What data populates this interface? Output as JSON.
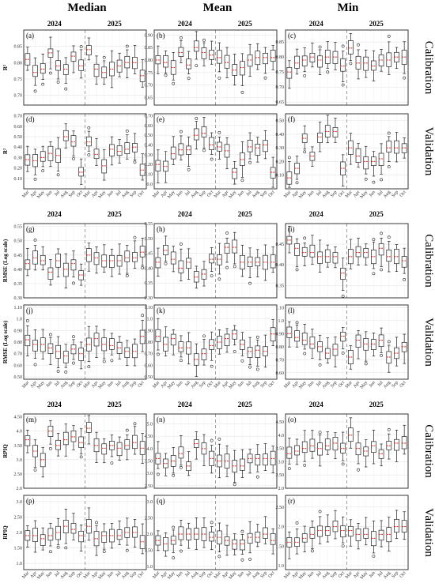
{
  "figure": {
    "columns": [
      "Median",
      "Mean",
      "Min"
    ],
    "years": [
      "2024",
      "2025"
    ],
    "row_labels": [
      "Calibration",
      "Validation",
      "Calibration",
      "Validation",
      "Calibration",
      "Validation"
    ],
    "months": [
      "Mar",
      "Apr",
      "May",
      "Jun",
      "Jul",
      "Aug",
      "Sep",
      "Oct",
      "Mar",
      "Apr",
      "May",
      "Jun",
      "Jul",
      "Aug",
      "Sep",
      "Oct"
    ],
    "ylabels": {
      "r2": "R²",
      "rmse": "RMSE (Log scale)",
      "rpiq": "RPIQ"
    },
    "colors": {
      "box": "#222222",
      "median": "#e8392f",
      "divider": "#888888",
      "grid": "#e5e5e5"
    }
  },
  "chart_data": [
    {
      "type": "box",
      "panel": "(a)",
      "metric": "R²",
      "column": "Median",
      "set": "Calibration",
      "ylim": [
        0.67,
        0.9
      ],
      "yticks": [
        0.7,
        0.75,
        0.8,
        0.85
      ],
      "medians": [
        0.81,
        0.77,
        0.78,
        0.83,
        0.79,
        0.78,
        0.82,
        0.79,
        0.84,
        0.78,
        0.77,
        0.78,
        0.79,
        0.8,
        0.8,
        0.76
      ]
    },
    {
      "type": "box",
      "panel": "(b)",
      "metric": "R²",
      "column": "Mean",
      "set": "Calibration",
      "ylim": [
        0.62,
        0.92
      ],
      "yticks": [
        0.65,
        0.7,
        0.75,
        0.8,
        0.85,
        0.9
      ],
      "medians": [
        0.8,
        0.79,
        0.77,
        0.83,
        0.78,
        0.85,
        0.83,
        0.82,
        0.81,
        0.79,
        0.76,
        0.77,
        0.8,
        0.81,
        0.81,
        0.81
      ]
    },
    {
      "type": "box",
      "panel": "(c)",
      "metric": "R²",
      "column": "Min",
      "set": "Calibration",
      "ylim": [
        0.64,
        0.89
      ],
      "yticks": [
        0.65,
        0.7,
        0.75,
        0.8,
        0.85
      ],
      "medians": [
        0.75,
        0.78,
        0.79,
        0.8,
        0.79,
        0.8,
        0.8,
        0.77,
        0.83,
        0.78,
        0.78,
        0.77,
        0.79,
        0.79,
        0.8,
        0.8
      ]
    },
    {
      "type": "box",
      "panel": "(d)",
      "metric": "R²",
      "column": "Median",
      "set": "Validation",
      "ylim": [
        0.0,
        0.72
      ],
      "yticks": [
        0.1,
        0.2,
        0.3,
        0.4,
        0.5,
        0.6,
        0.7
      ],
      "medians": [
        0.28,
        0.27,
        0.3,
        0.34,
        0.32,
        0.5,
        0.45,
        0.16,
        0.45,
        0.33,
        0.22,
        0.38,
        0.36,
        0.38,
        0.4,
        0.18
      ]
    },
    {
      "type": "box",
      "panel": "(e)",
      "metric": "R²",
      "column": "Mean",
      "set": "Validation",
      "ylim": [
        -0.05,
        0.72
      ],
      "yticks": [
        0.0,
        0.1,
        0.2,
        0.3,
        0.4,
        0.5,
        0.6,
        0.7
      ],
      "medians": [
        0.2,
        0.18,
        0.31,
        0.35,
        0.35,
        0.5,
        0.52,
        0.4,
        0.38,
        0.34,
        0.12,
        0.25,
        0.38,
        0.37,
        0.4,
        0.12
      ]
    },
    {
      "type": "box",
      "panel": "(f)",
      "metric": "R²",
      "column": "Min",
      "set": "Validation",
      "ylim": [
        0.0,
        0.55
      ],
      "yticks": [
        0.1,
        0.2,
        0.3,
        0.4,
        0.5
      ],
      "medians": [
        0.08,
        0.15,
        0.37,
        0.24,
        0.38,
        0.42,
        0.42,
        0.15,
        0.3,
        0.24,
        0.2,
        0.2,
        0.22,
        0.3,
        0.3,
        0.3
      ]
    },
    {
      "type": "box",
      "panel": "(g)",
      "metric": "RMSE",
      "column": "Median",
      "set": "Calibration",
      "ylim": [
        0.3,
        0.56
      ],
      "yticks": [
        0.3,
        0.35,
        0.4,
        0.45,
        0.5,
        0.55
      ],
      "medians": [
        0.42,
        0.44,
        0.43,
        0.39,
        0.43,
        0.4,
        0.42,
        0.38,
        0.45,
        0.44,
        0.43,
        0.43,
        0.43,
        0.44,
        0.44,
        0.46
      ]
    },
    {
      "type": "box",
      "panel": "(h)",
      "metric": "RMSE",
      "column": "Mean",
      "set": "Calibration",
      "ylim": [
        0.3,
        0.55
      ],
      "yticks": [
        0.3,
        0.35,
        0.4,
        0.45,
        0.5,
        0.55
      ],
      "medians": [
        0.42,
        0.46,
        0.43,
        0.4,
        0.42,
        0.37,
        0.38,
        0.43,
        0.43,
        0.47,
        0.47,
        0.42,
        0.42,
        0.42,
        0.42,
        0.42
      ]
    },
    {
      "type": "box",
      "panel": "(i)",
      "metric": "RMSE",
      "column": "Min",
      "set": "Calibration",
      "ylim": [
        0.32,
        0.5
      ],
      "yticks": [
        0.35,
        0.4,
        0.45
      ],
      "medians": [
        0.46,
        0.44,
        0.43,
        0.43,
        0.42,
        0.42,
        0.42,
        0.38,
        0.42,
        0.43,
        0.43,
        0.42,
        0.44,
        0.42,
        0.42,
        0.41
      ]
    },
    {
      "type": "box",
      "panel": "(j)",
      "metric": "RMSE",
      "column": "Median",
      "set": "Validation",
      "ylim": [
        0.48,
        1.12
      ],
      "yticks": [
        0.5,
        0.6,
        0.7,
        0.8,
        0.9,
        1.0,
        1.1
      ],
      "medians": [
        0.82,
        0.78,
        0.78,
        0.75,
        0.72,
        0.68,
        0.74,
        0.7,
        0.78,
        0.83,
        0.78,
        0.77,
        0.75,
        0.72,
        0.72,
        0.85
      ]
    },
    {
      "type": "box",
      "panel": "(k)",
      "metric": "RMSE",
      "column": "Mean",
      "set": "Validation",
      "ylim": [
        0.48,
        1.12
      ],
      "yticks": [
        0.5,
        0.6,
        0.7,
        0.8,
        0.9,
        1.0,
        1.1
      ],
      "medians": [
        0.85,
        0.78,
        0.83,
        0.75,
        0.75,
        0.65,
        0.7,
        0.77,
        0.8,
        0.83,
        0.87,
        0.78,
        0.72,
        0.73,
        0.72,
        0.87
      ]
    },
    {
      "type": "box",
      "panel": "(l)",
      "metric": "RMSE",
      "column": "Min",
      "set": "Validation",
      "ylim": [
        0.55,
        1.12
      ],
      "yticks": [
        0.6,
        0.7,
        0.8,
        0.9,
        1.0,
        1.1
      ],
      "medians": [
        0.9,
        0.87,
        0.85,
        0.82,
        0.8,
        0.75,
        0.78,
        0.88,
        0.72,
        0.85,
        0.82,
        0.82,
        0.85,
        0.72,
        0.75,
        0.8
      ]
    },
    {
      "type": "box",
      "panel": "(m)",
      "metric": "RPIQ",
      "column": "Median",
      "set": "Calibration",
      "ylim": [
        2.0,
        4.6
      ],
      "yticks": [
        2.0,
        2.5,
        3.0,
        3.5,
        4.0,
        4.5
      ],
      "medians": [
        3.7,
        3.3,
        3.0,
        4.0,
        3.5,
        3.7,
        3.8,
        3.6,
        4.1,
        3.5,
        3.4,
        3.5,
        3.4,
        3.5,
        3.6,
        3.4
      ]
    },
    {
      "type": "box",
      "panel": "(n)",
      "metric": "RPIQ",
      "column": "Mean",
      "set": "Calibration",
      "ylim": [
        2.4,
        5.4
      ],
      "yticks": [
        2.5,
        3.0,
        3.5,
        4.0,
        4.5,
        5.0
      ],
      "medians": [
        3.6,
        3.4,
        3.5,
        3.8,
        3.3,
        4.2,
        4.0,
        3.6,
        3.5,
        3.5,
        3.3,
        3.3,
        3.6,
        3.6,
        3.6,
        3.6
      ]
    },
    {
      "type": "box",
      "panel": "(o)",
      "metric": "RPIQ",
      "column": "Min",
      "set": "Calibration",
      "ylim": [
        2.0,
        4.8
      ],
      "yticks": [
        2.0,
        2.5,
        3.0,
        3.5,
        4.0,
        4.5
      ],
      "medians": [
        3.3,
        3.4,
        3.5,
        3.6,
        3.5,
        3.6,
        3.7,
        3.5,
        4.0,
        3.5,
        3.4,
        3.6,
        3.3,
        3.6,
        3.7,
        3.7
      ]
    },
    {
      "type": "box",
      "panel": "(p)",
      "metric": "RPIQ",
      "column": "Median",
      "set": "Validation",
      "ylim": [
        0.8,
        3.2
      ],
      "yticks": [
        1.0,
        1.5,
        2.0,
        2.5,
        3.0
      ],
      "medians": [
        1.9,
        1.9,
        1.8,
        1.9,
        2.0,
        2.2,
        2.1,
        1.9,
        2.2,
        1.8,
        1.9,
        1.9,
        1.9,
        2.0,
        2.0,
        1.7
      ]
    },
    {
      "type": "box",
      "panel": "(q)",
      "metric": "RPIQ",
      "column": "Mean",
      "set": "Validation",
      "ylim": [
        0.9,
        3.2
      ],
      "yticks": [
        1.0,
        1.5,
        2.0,
        2.5,
        3.0
      ],
      "medians": [
        1.8,
        1.7,
        1.8,
        2.0,
        2.0,
        2.0,
        2.0,
        1.9,
        1.9,
        1.8,
        1.7,
        1.7,
        1.9,
        1.9,
        2.0,
        1.8
      ]
    },
    {
      "type": "box",
      "panel": "(r)",
      "metric": "RPIQ",
      "column": "Min",
      "set": "Validation",
      "ylim": [
        0.9,
        2.8
      ],
      "yticks": [
        1.0,
        1.5,
        2.0,
        2.5
      ],
      "medians": [
        1.6,
        1.6,
        1.7,
        1.8,
        1.9,
        1.9,
        2.0,
        1.9,
        1.9,
        1.8,
        1.8,
        1.7,
        1.8,
        1.8,
        2.0,
        2.0
      ]
    }
  ]
}
